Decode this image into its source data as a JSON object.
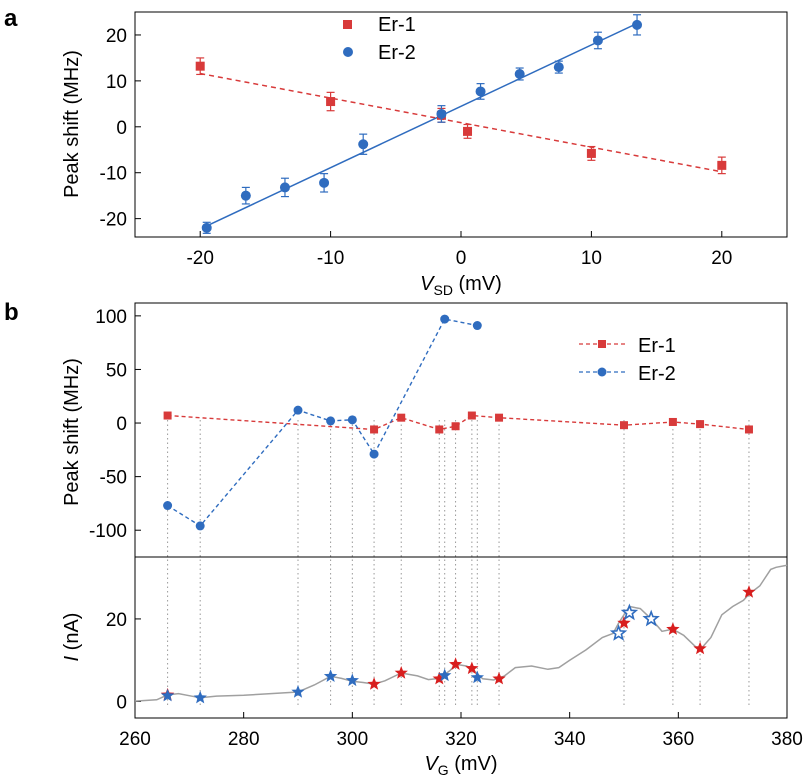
{
  "panel_a": {
    "label": "a",
    "chart_data": {
      "type": "scatter",
      "xlabel": "V_SD (mV)",
      "ylabel": "Peak shift (MHz)",
      "xlim": [
        -25,
        25
      ],
      "ylim": [
        -24,
        25
      ],
      "xticks": [
        -20,
        -10,
        0,
        10,
        20
      ],
      "yticks": [
        -20,
        -10,
        0,
        10,
        20
      ],
      "legend_position": "top-center",
      "series": [
        {
          "name": "Er-1",
          "marker": "square",
          "color": "#d83a3a",
          "x": [
            -20,
            -10,
            -1.5,
            0.5,
            10,
            20
          ],
          "y": [
            13.2,
            5.5,
            2.5,
            -1.0,
            -5.8,
            -8.4
          ],
          "err": [
            1.8,
            2.0,
            1.5,
            1.5,
            1.5,
            1.8
          ],
          "fit": {
            "style": "dashed",
            "x": [
              -20,
              20
            ],
            "y": [
              11.6,
              -9.8
            ]
          }
        },
        {
          "name": "Er-2",
          "marker": "circle",
          "color": "#2f6cbf",
          "x": [
            -19.5,
            -16.5,
            -13.5,
            -10.5,
            -7.5,
            -1.5,
            1.5,
            4.5,
            7.5,
            10.5,
            13.5
          ],
          "y": [
            -22.0,
            -15.0,
            -13.2,
            -12.2,
            -3.8,
            2.8,
            7.7,
            11.5,
            13.0,
            18.8,
            22.2
          ],
          "err": [
            1.2,
            1.8,
            2.0,
            2.0,
            2.2,
            1.8,
            1.7,
            1.3,
            1.3,
            1.8,
            2.2
          ],
          "fit": {
            "style": "solid",
            "x": [
              -19.5,
              13.5
            ],
            "y": [
              -21.6,
              22.5
            ]
          }
        }
      ]
    }
  },
  "panel_b": {
    "label": "b",
    "chart_data": [
      {
        "type": "line",
        "ylabel": "Peak shift (MHz)",
        "ylim": [
          -125,
          112
        ],
        "yticks": [
          100,
          50,
          0,
          -50,
          -100
        ],
        "legend_position": "top-right",
        "series": [
          {
            "name": "Er-1",
            "marker": "square",
            "color": "#d83a3a",
            "style": "dashed",
            "x": [
              266,
              304,
              309,
              316,
              319,
              322,
              327,
              350,
              359,
              364,
              373
            ],
            "y": [
              7,
              -6,
              5,
              -6,
              -3,
              7,
              5,
              -2,
              1,
              -1,
              -6
            ]
          },
          {
            "name": "Er-2",
            "marker": "circle",
            "color": "#2f6cbf",
            "style": "dashed",
            "x": [
              266,
              272,
              290,
              296,
              300,
              304,
              317,
              323
            ],
            "y": [
              -77,
              -96,
              12,
              2,
              3,
              -29,
              97,
              91
            ]
          }
        ]
      },
      {
        "type": "line",
        "xlabel": "V_G (mV)",
        "ylabel": "I (nA)",
        "xlim": [
          260,
          380
        ],
        "ylim": [
          -4,
          35
        ],
        "xticks": [
          260,
          280,
          300,
          320,
          340,
          360,
          380
        ],
        "yticks": [
          0,
          20
        ],
        "trace": {
          "color": "#a0a0a0",
          "x": [
            260,
            264,
            266,
            268,
            270,
            272,
            275,
            280,
            285,
            290,
            293,
            296,
            298,
            300,
            302,
            304,
            306,
            309,
            312,
            314,
            316,
            318,
            319,
            321,
            322,
            324,
            326,
            328,
            330,
            333,
            336,
            338,
            340,
            343,
            346,
            348,
            349,
            350,
            351,
            353,
            355,
            357,
            359,
            361,
            363,
            364,
            366,
            368,
            370,
            372,
            373,
            375,
            377,
            378,
            380
          ],
          "y": [
            0.1,
            0.4,
            1.6,
            1.9,
            1.4,
            0.9,
            1.3,
            1.5,
            1.9,
            2.3,
            4.0,
            6.1,
            5.6,
            4.9,
            4.6,
            4.2,
            5.0,
            6.9,
            6.2,
            5.3,
            5.6,
            7.5,
            9.0,
            8.6,
            8.0,
            5.5,
            5.2,
            6.2,
            8.2,
            8.6,
            7.8,
            8.2,
            10.0,
            12.5,
            15.5,
            16.5,
            19.0,
            21.0,
            23.0,
            22.5,
            20.0,
            17.0,
            17.5,
            16.0,
            13.5,
            12.5,
            15.5,
            21.0,
            23.0,
            24.5,
            26.0,
            28.0,
            32.0,
            32.5,
            33.0
          ]
        },
        "markers": {
          "filled_red_star": {
            "color": "#d81e1e",
            "x": [
              266,
              304,
              309,
              316,
              319,
              322,
              327,
              350,
              359,
              364,
              373
            ],
            "y": [
              1.6,
              4.2,
              6.9,
              5.5,
              9.0,
              8.0,
              5.5,
              19.0,
              17.5,
              12.8,
              26.5
            ]
          },
          "filled_blue_star": {
            "color": "#2f6cbf",
            "x": [
              266,
              272,
              290,
              296,
              300,
              317,
              323
            ],
            "y": [
              1.4,
              0.9,
              2.3,
              6.1,
              5.1,
              6.3,
              5.8
            ]
          },
          "open_blue_star": {
            "color": "#2f6cbf",
            "x": [
              349,
              351,
              355
            ],
            "y": [
              16.5,
              21.5,
              20.0
            ]
          }
        }
      }
    ],
    "guide_lines": {
      "style": "dotted",
      "color": "#999999",
      "x": [
        266,
        272,
        290,
        296,
        300,
        304,
        309,
        316,
        317,
        319,
        322,
        323,
        327,
        350,
        359,
        364,
        373
      ]
    }
  },
  "text": {
    "a_xlabel_var": "V",
    "a_xlabel_sub": "SD",
    "a_xlabel_unit": " (mV)",
    "a_ylabel": "Peak shift (MHz)",
    "b_ylabel_top": "Peak shift (MHz)",
    "b_ylabel_bot_var": "I",
    "b_ylabel_bot_unit": " (nA)",
    "b_xlabel_var": "V",
    "b_xlabel_sub": "G",
    "b_xlabel_unit": " (mV)"
  }
}
